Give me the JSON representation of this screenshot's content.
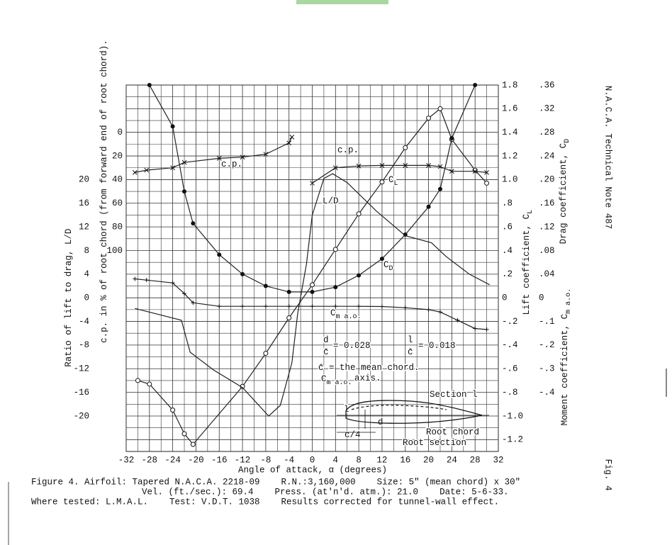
{
  "chart_data": {
    "type": "line",
    "side_title": "N.A.C.A. Technical Note 487",
    "side_fig": "Fig. 4",
    "caption": [
      "Figure 4. Airfoil: Tapered N.A.C.A. 2218-09    R.N.:3,160,000    Size: 5\" (mean chord) x 30\"",
      "Vel. (ft./sec.): 69.4    Press. (at'n'd. atm.): 21.0    Date: 5-6-33.",
      "Where tested: L.M.A.L.    Test: V.D.T. 1038    Results corrected for tunnel-wall effect."
    ],
    "xlabel": "Angle of attack, α (degrees)",
    "xlim": [
      -32,
      32
    ],
    "xticks": [
      -32,
      -28,
      -24,
      -20,
      -16,
      -12,
      -8,
      -4,
      0,
      4,
      8,
      12,
      16,
      20,
      24,
      28,
      32
    ],
    "grid": true,
    "axes": {
      "ld": {
        "label": "Ratio of lift to drag, L/D",
        "lim": [
          -26,
          36
        ],
        "ticks": [
          -20,
          -16,
          -12,
          -8,
          -4,
          0,
          4,
          8,
          12,
          16,
          20
        ]
      },
      "cp": {
        "label": "c.p. in % of root chord (from forward end of root chord).",
        "lim": [
          270,
          -40
        ],
        "ticks": [
          0,
          20,
          40,
          60,
          80,
          100
        ]
      },
      "cl": {
        "label": "Lift coefficient, C",
        "label_sub": "L",
        "lim": [
          -1.3,
          1.8
        ],
        "ticks": [
          {
            "value": 1.8,
            "label": "1.8"
          },
          {
            "value": 1.6,
            "label": "1.6"
          },
          {
            "value": 1.4,
            "label": "1.4"
          },
          {
            "value": 1.2,
            "label": "1.2"
          },
          {
            "value": 1.0,
            "label": "1.0"
          },
          {
            "value": 0.8,
            "label": ".8"
          },
          {
            "value": 0.6,
            "label": ".6"
          },
          {
            "value": 0.4,
            "label": ".4"
          },
          {
            "value": 0.2,
            "label": ".2"
          },
          0,
          {
            "value": -0.2,
            "label": "-.2"
          },
          {
            "value": -0.4,
            "label": "-.4"
          },
          {
            "value": -0.6,
            "label": "-.6"
          },
          {
            "value": -0.8,
            "label": "-.8"
          },
          {
            "value": -1.0,
            "label": "-1.0"
          },
          {
            "value": -1.2,
            "label": "-1.2"
          }
        ]
      },
      "cd": {
        "label": "Drag coefficient, C",
        "label_sub": "D",
        "lim": [
          -0.26,
          0.36
        ],
        "ticks": [
          {
            "value": 0.36,
            "label": ".36"
          },
          {
            "value": 0.32,
            "label": ".32"
          },
          {
            "value": 0.28,
            "label": ".28"
          },
          {
            "value": 0.24,
            "label": ".24"
          },
          {
            "value": 0.2,
            "label": ".20"
          },
          {
            "value": 0.16,
            "label": ".16"
          },
          {
            "value": 0.12,
            "label": ".12"
          },
          {
            "value": 0.08,
            "label": ".08"
          },
          {
            "value": 0.04,
            "label": ".04"
          },
          0
        ]
      },
      "cm": {
        "label": "Moment coefficient, C",
        "label_sub": "m a.o.",
        "lim": [
          -0.65,
          0.9
        ],
        "ticks": [
          {
            "value": -0.1,
            "label": "-.1"
          },
          {
            "value": -0.2,
            "label": "-.2"
          },
          {
            "value": -0.3,
            "label": "-.3"
          },
          {
            "value": -0.4,
            "label": "-.4"
          }
        ]
      }
    },
    "series": [
      {
        "name": "C_L",
        "axis": "cl",
        "marker": "open-circle",
        "color": "#222",
        "x": [
          -30,
          -28,
          -24,
          -22,
          -20.5,
          -12,
          -8,
          -4,
          0,
          4,
          8,
          12,
          16,
          20,
          22,
          24,
          28,
          30
        ],
        "values": [
          -0.7,
          -0.73,
          -0.95,
          -1.15,
          -1.24,
          -0.75,
          -0.47,
          -0.17,
          0.11,
          0.41,
          0.71,
          0.98,
          1.27,
          1.52,
          1.6,
          1.34,
          1.08,
          0.97
        ]
      },
      {
        "name": "C_D",
        "axis": "cd",
        "marker": "filled-circle",
        "color": "#222",
        "x": [
          -28,
          -24,
          -22,
          -20.5,
          -16,
          -12,
          -8,
          -4,
          0,
          4,
          8,
          12,
          16,
          20,
          22,
          24,
          28
        ],
        "values": [
          0.36,
          0.29,
          0.18,
          0.126,
          0.073,
          0.04,
          0.02,
          0.01,
          0.01,
          0.018,
          0.038,
          0.066,
          0.107,
          0.154,
          0.184,
          0.27,
          0.36
        ]
      },
      {
        "name": "L/D",
        "axis": "ld",
        "marker": "none",
        "color": "#222",
        "x": [
          -30.5,
          -22.5,
          -21,
          -17,
          -12,
          -7.5,
          -5.5,
          -3.5,
          -2.5,
          -1,
          0,
          2,
          3.5,
          6,
          11,
          16,
          20.5,
          23,
          27,
          30.5
        ],
        "values": [
          -1.8,
          -3.8,
          -9.2,
          -12.2,
          -15.2,
          -20,
          -18.2,
          -11,
          -2.6,
          5.7,
          14,
          20.2,
          21,
          19.5,
          14.7,
          10.5,
          9.3,
          7,
          4,
          2.2
        ]
      },
      {
        "name": "c.p.",
        "axis": "cp",
        "marker": "cross",
        "color": "#222",
        "x": [
          -30.5,
          -28.5,
          -24,
          -22,
          -16,
          -12,
          -8,
          -4,
          -3.5,
          -2,
          0,
          4,
          8,
          12,
          16,
          20,
          22,
          24,
          28,
          30
        ],
        "values": [
          34,
          32,
          30,
          25.5,
          22,
          21,
          18.5,
          9,
          4,
          null,
          43,
          30,
          28.5,
          28,
          28,
          28,
          29,
          33,
          33,
          34
        ]
      },
      {
        "name": "C_m a.o.",
        "axis": "cm",
        "marker": "plus",
        "color": "#222",
        "x": [
          -30.5,
          -28.5,
          -24,
          -22,
          -20.5,
          -16,
          -12,
          -8,
          -4,
          0,
          4,
          8,
          12,
          16,
          20,
          22,
          25,
          28,
          30
        ],
        "values": [
          0.08,
          0.075,
          0.063,
          0.018,
          -0.021,
          -0.036,
          -0.036,
          -0.036,
          -0.036,
          -0.036,
          -0.036,
          -0.036,
          -0.037,
          -0.042,
          -0.05,
          -0.06,
          -0.095,
          -0.13,
          -0.134
        ]
      }
    ],
    "annotations": [
      {
        "text": "c.p."
      },
      {
        "text": "c.p."
      },
      {
        "text": "L/D"
      },
      {
        "text": "C",
        "sub": "L"
      },
      {
        "text": "C",
        "sub": "D"
      },
      {
        "text": "C",
        "sub": "m a.o."
      },
      {
        "text": "d"
      },
      {
        "text": "c̄"
      },
      {
        "text": "= 0.028"
      },
      {
        "text": "l"
      },
      {
        "text": "c̄"
      },
      {
        "text": "= 0.018"
      },
      {
        "text": "c̄ = the mean chord."
      },
      {
        "text": "C",
        "sub": "m a.o."
      },
      {
        "text": "axis."
      },
      {
        "text": "Section l"
      },
      {
        "text": "l"
      },
      {
        "text": "d"
      },
      {
        "text": "c/4"
      },
      {
        "text": "Root chord"
      },
      {
        "text": "Root section"
      }
    ]
  }
}
